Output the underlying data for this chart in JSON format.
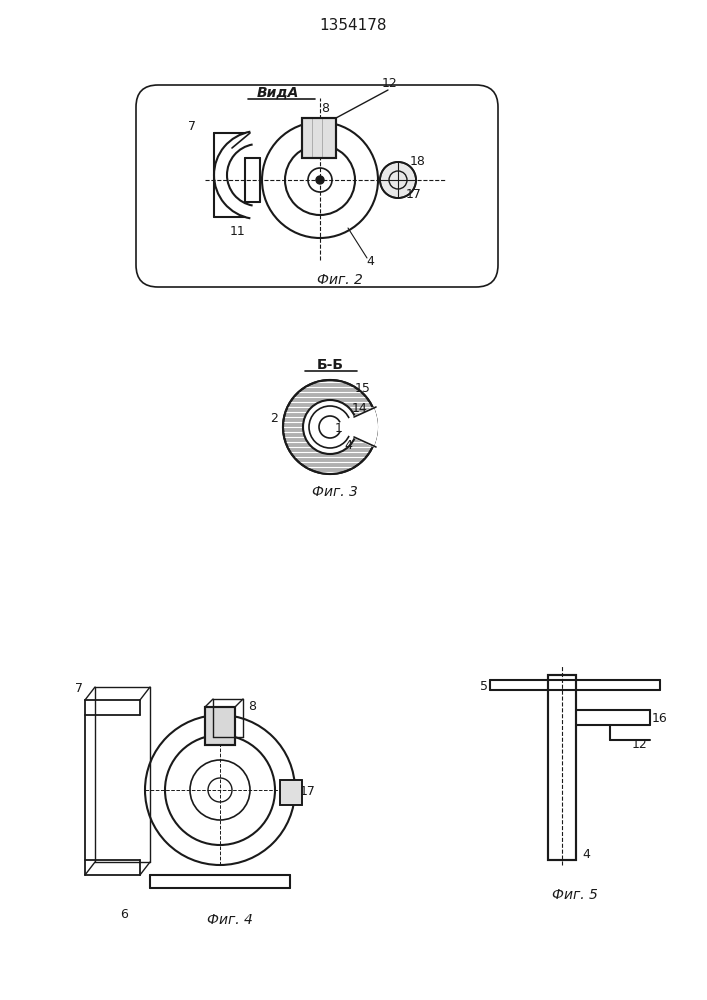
{
  "title": "1354178",
  "fig2_label": "Фиг. 2",
  "fig3_label": "Фиг. 3",
  "fig4_label": "Фиг. 4",
  "fig5_label": "Фиг. 5",
  "vida_label": "ВидА",
  "bb_label": "Б-Б",
  "line_color": "#1a1a1a",
  "bg_color": "#f5f5f0",
  "hatch_color": "#555555"
}
